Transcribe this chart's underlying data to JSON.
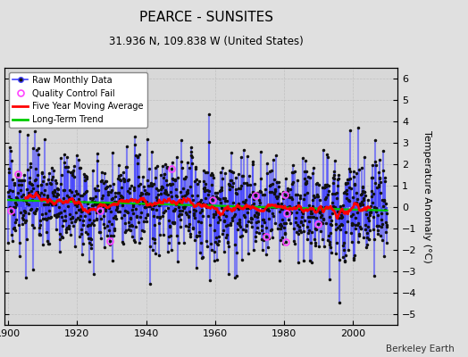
{
  "title": "PEARCE - SUNSITES",
  "subtitle": "31.936 N, 109.838 W (United States)",
  "ylabel": "Temperature Anomaly (°C)",
  "credit": "Berkeley Earth",
  "ylim": [
    -5.5,
    6.5
  ],
  "xlim": [
    1899,
    2013
  ],
  "yticks": [
    -5,
    -4,
    -3,
    -2,
    -1,
    0,
    1,
    2,
    3,
    4,
    5,
    6
  ],
  "xticks": [
    1900,
    1920,
    1940,
    1960,
    1980,
    2000
  ],
  "bg_color": "#e0e0e0",
  "plot_bg_color": "#d8d8d8",
  "raw_color": "#4444ff",
  "marker_color": "#111111",
  "qc_color": "#ff44ff",
  "moving_avg_color": "#ff0000",
  "trend_color": "#00cc00",
  "seed": 17,
  "n_years": 110,
  "start_year": 1900
}
